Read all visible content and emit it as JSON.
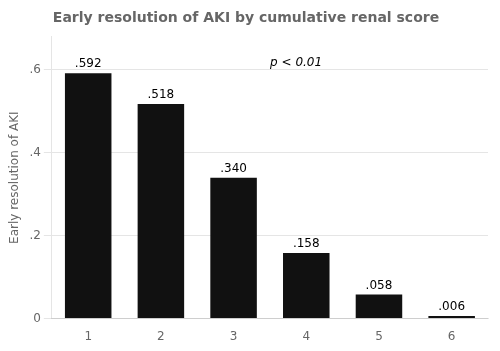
{
  "chart_data": {
    "type": "bar",
    "title": "Early resolution of AKI by cumulative renal score",
    "ylabel": "Early resolution of AKI",
    "categories": [
      1,
      2,
      3,
      4,
      5,
      6
    ],
    "values": [
      0.592,
      0.518,
      0.34,
      0.158,
      0.058,
      0.006
    ],
    "value_labels": [
      ".592",
      ".518",
      ".340",
      ".158",
      ".058",
      ".006"
    ],
    "data_labels": true,
    "color": "#111111",
    "ylim": [
      0,
      0.68
    ],
    "yticks": [
      0,
      {
        "value": 0.2,
        "label": ".2"
      },
      {
        "value": 0.4,
        "label": ".4"
      },
      {
        "value": 0.6,
        "label": ".6"
      }
    ],
    "annotations": [
      "p < 0.01"
    ],
    "grid": true
  }
}
